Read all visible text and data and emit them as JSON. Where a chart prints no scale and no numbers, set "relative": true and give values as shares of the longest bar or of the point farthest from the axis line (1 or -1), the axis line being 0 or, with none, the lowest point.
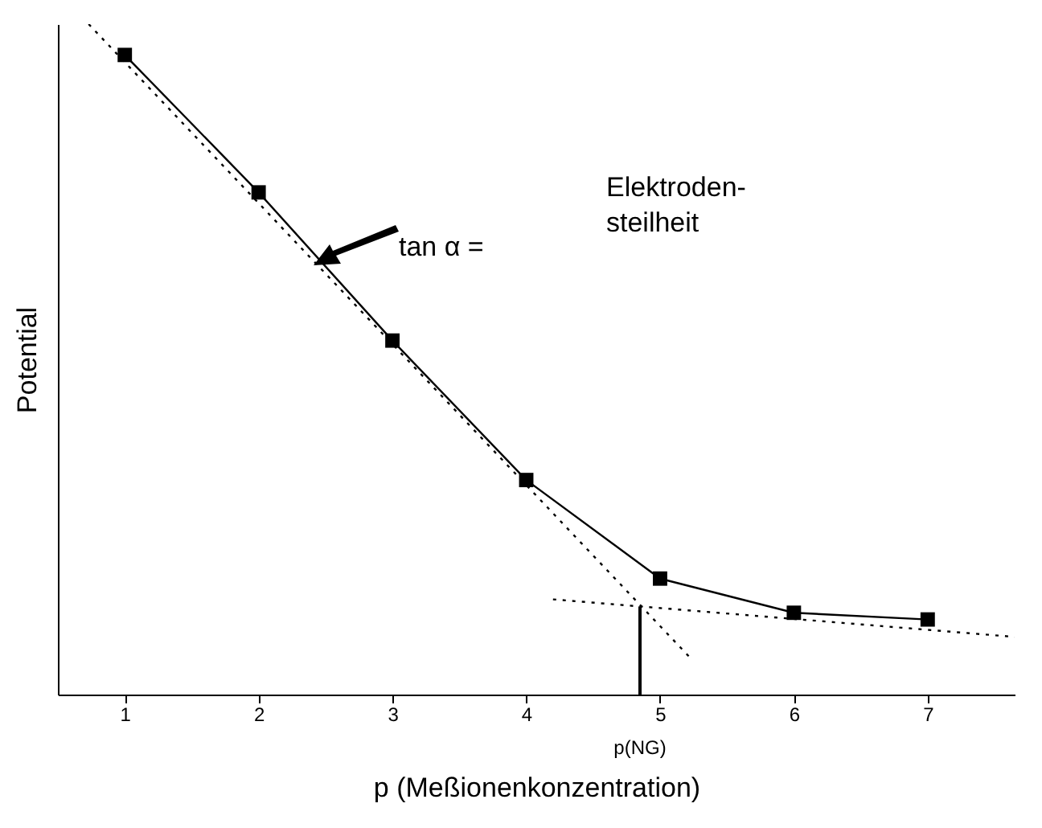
{
  "chart_data": {
    "type": "line",
    "xlabel": "p (Meßionenkonzentration)",
    "ylabel": "Potential",
    "relative": true,
    "xlim": [
      0.5,
      7.65
    ],
    "xticks": [
      1,
      2,
      3,
      4,
      5,
      6,
      7
    ],
    "marker": "square",
    "grid": false,
    "annotations": [
      "tan α =",
      "Elektroden-\nsteilheit"
    ],
    "ref_lines": [
      {
        "axis": "x",
        "value": 4.85,
        "label": "p(NG)",
        "color": "#000000"
      }
    ],
    "series": [
      {
        "color": "#000000",
        "x": [
          1,
          2,
          3,
          4,
          5,
          6,
          7
        ],
        "values": [
          0.954,
          0.749,
          0.528,
          0.32,
          0.173,
          0.122,
          0.112
        ]
      },
      {
        "type": "line",
        "color": "#000000",
        "line_style": "dotted",
        "marker": "none",
        "x": [
          0.73,
          5.22
        ],
        "values": [
          1.0,
          0.056
        ]
      },
      {
        "type": "line",
        "color": "#000000",
        "line_style": "dotted",
        "marker": "none",
        "x": [
          4.2,
          7.65
        ],
        "values": [
          0.142,
          0.086
        ]
      }
    ]
  }
}
